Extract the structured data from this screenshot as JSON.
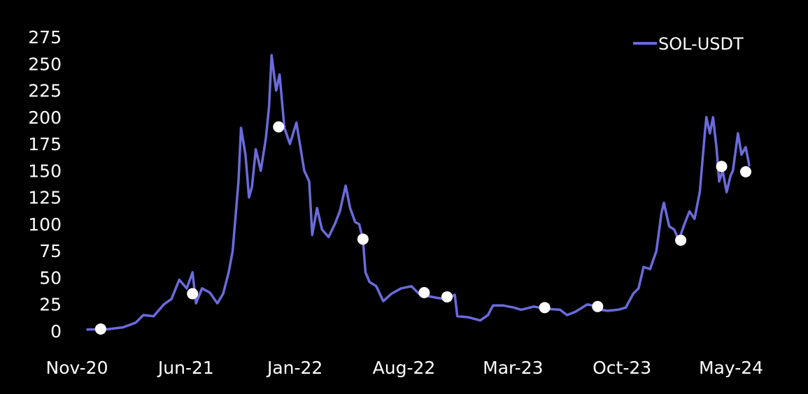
{
  "chart_data": {
    "type": "line",
    "title": "",
    "xlabel": "",
    "ylabel": "",
    "ylim": [
      0,
      275
    ],
    "y_ticks": [
      0,
      25,
      50,
      75,
      100,
      125,
      150,
      175,
      200,
      225,
      250,
      275
    ],
    "x_tick_labels": [
      "Nov-20",
      "Jun-21",
      "Jan-22",
      "Aug-22",
      "Mar-23",
      "Oct-23",
      "May-24"
    ],
    "xlim": [
      "2020-11",
      "2024-07"
    ],
    "grid": false,
    "legend": {
      "position": "top-right",
      "entries": [
        "SOL-USDT"
      ]
    },
    "colors": {
      "background": "#000000",
      "text": "#ffffff",
      "line": "#6b6bdc",
      "marker": "#ffffff"
    },
    "series": [
      {
        "name": "SOL-USDT",
        "points": [
          [
            "2020-11-05",
            1.5
          ],
          [
            "2020-12-15",
            1.8
          ],
          [
            "2021-01-15",
            3.5
          ],
          [
            "2021-02-10",
            8
          ],
          [
            "2021-02-25",
            15
          ],
          [
            "2021-03-15",
            14
          ],
          [
            "2021-04-05",
            25
          ],
          [
            "2021-04-20",
            30
          ],
          [
            "2021-05-05",
            48
          ],
          [
            "2021-05-20",
            40
          ],
          [
            "2021-06-01",
            55
          ],
          [
            "2021-06-08",
            26
          ],
          [
            "2021-06-20",
            40
          ],
          [
            "2021-07-05",
            36
          ],
          [
            "2021-07-20",
            26
          ],
          [
            "2021-08-01",
            35
          ],
          [
            "2021-08-12",
            55
          ],
          [
            "2021-08-20",
            75
          ],
          [
            "2021-09-01",
            140
          ],
          [
            "2021-09-06",
            190
          ],
          [
            "2021-09-15",
            165
          ],
          [
            "2021-09-22",
            125
          ],
          [
            "2021-09-28",
            135
          ],
          [
            "2021-10-05",
            170
          ],
          [
            "2021-10-15",
            150
          ],
          [
            "2021-10-25",
            180
          ],
          [
            "2021-11-01",
            210
          ],
          [
            "2021-11-06",
            258
          ],
          [
            "2021-11-15",
            225
          ],
          [
            "2021-11-22",
            240
          ],
          [
            "2021-12-01",
            190
          ],
          [
            "2021-12-12",
            175
          ],
          [
            "2021-12-25",
            195
          ],
          [
            "2022-01-10",
            150
          ],
          [
            "2022-01-20",
            140
          ],
          [
            "2022-01-26",
            90
          ],
          [
            "2022-02-05",
            115
          ],
          [
            "2022-02-15",
            95
          ],
          [
            "2022-02-28",
            88
          ],
          [
            "2022-03-10",
            100
          ],
          [
            "2022-03-20",
            112
          ],
          [
            "2022-04-01",
            136
          ],
          [
            "2022-04-10",
            115
          ],
          [
            "2022-04-20",
            102
          ],
          [
            "2022-04-28",
            100
          ],
          [
            "2022-05-05",
            86
          ],
          [
            "2022-05-10",
            55
          ],
          [
            "2022-05-18",
            46
          ],
          [
            "2022-06-01",
            42
          ],
          [
            "2022-06-15",
            28
          ],
          [
            "2022-07-01",
            35
          ],
          [
            "2022-07-20",
            40
          ],
          [
            "2022-08-10",
            42
          ],
          [
            "2022-08-25",
            35
          ],
          [
            "2022-09-10",
            33
          ],
          [
            "2022-10-01",
            31
          ],
          [
            "2022-10-20",
            30
          ],
          [
            "2022-11-05",
            34
          ],
          [
            "2022-11-10",
            14
          ],
          [
            "2022-12-01",
            13
          ],
          [
            "2022-12-25",
            10
          ],
          [
            "2023-01-10",
            15
          ],
          [
            "2023-01-20",
            24
          ],
          [
            "2023-02-10",
            24
          ],
          [
            "2023-03-01",
            22
          ],
          [
            "2023-03-15",
            20
          ],
          [
            "2023-04-10",
            23
          ],
          [
            "2023-05-01",
            21
          ],
          [
            "2023-06-01",
            20
          ],
          [
            "2023-06-15",
            15
          ],
          [
            "2023-07-01",
            18
          ],
          [
            "2023-07-25",
            25
          ],
          [
            "2023-08-05",
            24
          ],
          [
            "2023-08-20",
            20
          ],
          [
            "2023-09-05",
            19
          ],
          [
            "2023-09-25",
            20
          ],
          [
            "2023-10-10",
            22
          ],
          [
            "2023-10-25",
            35
          ],
          [
            "2023-11-05",
            40
          ],
          [
            "2023-11-15",
            60
          ],
          [
            "2023-11-28",
            58
          ],
          [
            "2023-12-10",
            75
          ],
          [
            "2023-12-20",
            110
          ],
          [
            "2023-12-25",
            120
          ],
          [
            "2024-01-05",
            98
          ],
          [
            "2024-01-15",
            95
          ],
          [
            "2024-01-24",
            85
          ],
          [
            "2024-02-05",
            100
          ],
          [
            "2024-02-15",
            112
          ],
          [
            "2024-02-25",
            105
          ],
          [
            "2024-03-05",
            130
          ],
          [
            "2024-03-15",
            185
          ],
          [
            "2024-03-18",
            200
          ],
          [
            "2024-03-25",
            185
          ],
          [
            "2024-04-01",
            200
          ],
          [
            "2024-04-08",
            170
          ],
          [
            "2024-04-13",
            140
          ],
          [
            "2024-04-20",
            150
          ],
          [
            "2024-04-28",
            130
          ],
          [
            "2024-05-05",
            145
          ],
          [
            "2024-05-10",
            150
          ],
          [
            "2024-05-20",
            185
          ],
          [
            "2024-05-27",
            165
          ],
          [
            "2024-06-05",
            172
          ],
          [
            "2024-06-12",
            155
          ]
        ]
      }
    ],
    "markers": [
      [
        "2020-12-01",
        2
      ],
      [
        "2021-06-01",
        35
      ],
      [
        "2021-11-20",
        191
      ],
      [
        "2022-05-05",
        86
      ],
      [
        "2022-09-05",
        36
      ],
      [
        "2022-10-20",
        32
      ],
      [
        "2023-05-01",
        22
      ],
      [
        "2023-08-15",
        23
      ],
      [
        "2024-01-28",
        85
      ],
      [
        "2024-04-18",
        154
      ],
      [
        "2024-06-05",
        149
      ]
    ]
  }
}
